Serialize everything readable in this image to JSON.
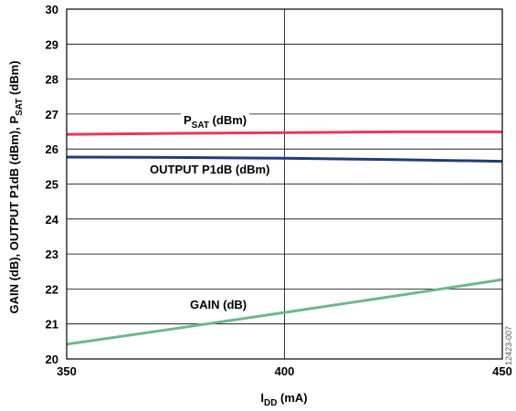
{
  "chart_data": {
    "type": "line",
    "xlabel": {
      "main": "I",
      "sub": "DD",
      "rest": " (mA)"
    },
    "ylabel": {
      "text": "GAIN (dB), OUTPUT P1dB (dBm), P",
      "sub": "SAT",
      "rest": " (dBm)"
    },
    "xlim": [
      350,
      450
    ],
    "ylim": [
      20,
      30
    ],
    "x_ticks": [
      350,
      400,
      450
    ],
    "y_ticks": [
      20,
      21,
      22,
      23,
      24,
      25,
      26,
      27,
      28,
      29,
      30
    ],
    "grid": true,
    "series": [
      {
        "key": "psat",
        "label": {
          "main": "P",
          "sub": "SAT",
          "rest": " (dBm)"
        },
        "color": "#e8385a",
        "x": [
          350,
          375,
          400,
          425,
          450
        ],
        "y": [
          26.42,
          26.45,
          26.47,
          26.49,
          26.49
        ]
      },
      {
        "key": "p1db",
        "label": {
          "main": "OUTPUT P1dB (dBm)",
          "sub": "",
          "rest": ""
        },
        "color": "#1f3d7a",
        "x": [
          350,
          375,
          400,
          425,
          450
        ],
        "y": [
          25.77,
          25.76,
          25.74,
          25.7,
          25.65
        ]
      },
      {
        "key": "gain",
        "label": {
          "main": "GAIN (dB)",
          "sub": "",
          "rest": ""
        },
        "color": "#6db88e",
        "x": [
          350,
          375,
          400,
          425,
          450
        ],
        "y": [
          20.42,
          20.87,
          21.33,
          21.79,
          22.27
        ]
      }
    ]
  },
  "figure_id": "12423-007"
}
